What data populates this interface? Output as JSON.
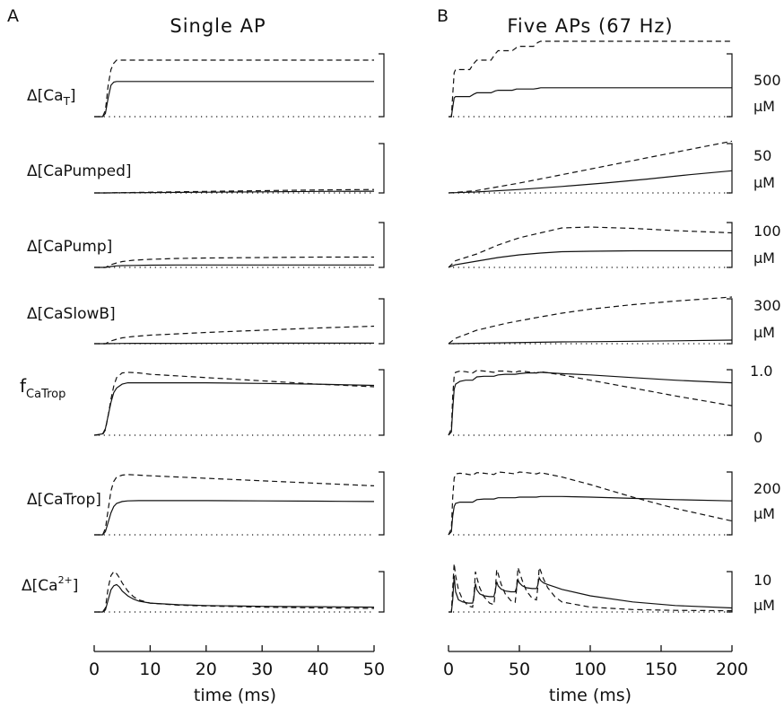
{
  "panels": [
    {
      "letter": "A",
      "title": "Single AP"
    },
    {
      "letter": "B",
      "title": "Five APs (67 Hz)"
    }
  ],
  "row_labels": [
    {
      "main": "Δ[Ca",
      "sub": "T",
      "tail": "]"
    },
    {
      "main": "Δ[CaPumped]"
    },
    {
      "main": "Δ[CaPump]"
    },
    {
      "main": "Δ[CaSlowB]"
    },
    {
      "main": "f",
      "sub": "CaTrop"
    },
    {
      "main": "Δ[CaTrop]"
    },
    {
      "main": "Δ[Ca",
      "sup": "2+",
      "tail": "]"
    }
  ],
  "scale_bars": [
    {
      "value": "500",
      "unit": "μM"
    },
    {
      "value": "50",
      "unit": "μM"
    },
    {
      "value": "100",
      "unit": "μM"
    },
    {
      "value": "300",
      "unit": "μM"
    },
    {
      "top": "1.0",
      "bottom": "0"
    },
    {
      "value": "200",
      "unit": "μM"
    },
    {
      "value": "10",
      "unit": "μM"
    }
  ],
  "colors": {
    "line": "#111111",
    "background": "#ffffff"
  },
  "chart_data": [
    {
      "type": "line",
      "panel": "A",
      "xlabel": "time (ms)",
      "xlim": [
        0,
        50
      ],
      "xticks": [
        0,
        10,
        20,
        30,
        40,
        50
      ],
      "line_styles": {
        "solid": "solid",
        "dashed": "dashed",
        "baseline": "dotted"
      },
      "note": "y values are fractions of each row's scale bar",
      "rows": [
        {
          "x": [
            0,
            1.5,
            2,
            2.5,
            3,
            3.5,
            4,
            5,
            7,
            10,
            20,
            30,
            40,
            50
          ],
          "solid": [
            0,
            0,
            0.05,
            0.3,
            0.5,
            0.55,
            0.56,
            0.56,
            0.56,
            0.56,
            0.56,
            0.56,
            0.56,
            0.56
          ],
          "dashed": [
            0,
            0,
            0.1,
            0.5,
            0.75,
            0.85,
            0.9,
            0.9,
            0.9,
            0.9,
            0.9,
            0.9,
            0.9,
            0.9
          ]
        },
        {
          "x": [
            0,
            2,
            5,
            10,
            20,
            30,
            40,
            50
          ],
          "solid": [
            0,
            0,
            0.003,
            0.008,
            0.015,
            0.022,
            0.03,
            0.035
          ],
          "dashed": [
            0,
            0,
            0.006,
            0.015,
            0.03,
            0.045,
            0.06,
            0.07
          ]
        },
        {
          "x": [
            0,
            2,
            3,
            4,
            5,
            7,
            10,
            15,
            20,
            30,
            40,
            50
          ],
          "solid": [
            0,
            0,
            0.02,
            0.035,
            0.04,
            0.045,
            0.05,
            0.055,
            0.055,
            0.055,
            0.055,
            0.055
          ],
          "dashed": [
            0,
            0,
            0.06,
            0.1,
            0.13,
            0.16,
            0.18,
            0.2,
            0.21,
            0.22,
            0.23,
            0.23
          ]
        },
        {
          "x": [
            0,
            2,
            3,
            4,
            5,
            7,
            10,
            15,
            20,
            30,
            40,
            50
          ],
          "solid": [
            0,
            0,
            0.003,
            0.005,
            0.006,
            0.007,
            0.008,
            0.009,
            0.01,
            0.011,
            0.012,
            0.013
          ],
          "dashed": [
            0,
            0,
            0.06,
            0.1,
            0.13,
            0.16,
            0.19,
            0.22,
            0.25,
            0.3,
            0.35,
            0.39
          ]
        },
        {
          "x": [
            0,
            1.5,
            2,
            2.5,
            3,
            3.5,
            4,
            5,
            6,
            8,
            10,
            20,
            30,
            40,
            50
          ],
          "solid": [
            0,
            0.02,
            0.1,
            0.3,
            0.5,
            0.65,
            0.72,
            0.78,
            0.8,
            0.8,
            0.8,
            0.8,
            0.79,
            0.78,
            0.76
          ],
          "dashed": [
            0,
            0.01,
            0.08,
            0.3,
            0.55,
            0.75,
            0.88,
            0.95,
            0.96,
            0.95,
            0.93,
            0.88,
            0.83,
            0.78,
            0.74
          ]
        },
        {
          "x": [
            0,
            1.5,
            2,
            2.5,
            3,
            3.5,
            4,
            5,
            6,
            8,
            10,
            20,
            30,
            40,
            50
          ],
          "solid": [
            0,
            0,
            0.05,
            0.2,
            0.35,
            0.45,
            0.5,
            0.53,
            0.54,
            0.545,
            0.545,
            0.545,
            0.54,
            0.535,
            0.53
          ],
          "dashed": [
            0,
            0,
            0.1,
            0.4,
            0.7,
            0.85,
            0.92,
            0.95,
            0.96,
            0.95,
            0.94,
            0.9,
            0.86,
            0.82,
            0.78
          ]
        },
        {
          "x": [
            0,
            1.5,
            2,
            2.5,
            3,
            3.5,
            4,
            4.5,
            5,
            6,
            7,
            8,
            10,
            15,
            20,
            30,
            40,
            50
          ],
          "solid": [
            0,
            0,
            0.05,
            0.3,
            0.55,
            0.65,
            0.68,
            0.62,
            0.52,
            0.4,
            0.32,
            0.27,
            0.22,
            0.18,
            0.16,
            0.14,
            0.13,
            0.12
          ],
          "dashed": [
            0,
            0,
            0.1,
            0.6,
            0.9,
            1.0,
            0.95,
            0.85,
            0.72,
            0.52,
            0.38,
            0.3,
            0.22,
            0.17,
            0.15,
            0.12,
            0.1,
            0.09
          ]
        }
      ]
    },
    {
      "type": "line",
      "panel": "B",
      "xlabel": "time (ms)",
      "xlim": [
        0,
        200
      ],
      "xticks": [
        0,
        50,
        100,
        150,
        200
      ],
      "line_styles": {
        "solid": "solid",
        "dashed": "dashed",
        "baseline": "dotted"
      },
      "note": "y values are fractions of each row's scale bar",
      "rows": [
        {
          "x": [
            0,
            2,
            3,
            4,
            5,
            15,
            18,
            20,
            30,
            33,
            35,
            45,
            48,
            50,
            60,
            63,
            65,
            100,
            200
          ],
          "solid": [
            0,
            0,
            0.15,
            0.3,
            0.32,
            0.32,
            0.36,
            0.38,
            0.38,
            0.41,
            0.42,
            0.42,
            0.44,
            0.44,
            0.44,
            0.45,
            0.46,
            0.46,
            0.46
          ],
          "dashed": [
            0,
            0,
            0.35,
            0.7,
            0.75,
            0.75,
            0.85,
            0.9,
            0.9,
            1.0,
            1.05,
            1.05,
            1.1,
            1.12,
            1.12,
            1.18,
            1.2,
            1.2,
            1.2
          ]
        },
        {
          "x": [
            0,
            5,
            20,
            50,
            80,
            110,
            140,
            170,
            200
          ],
          "solid": [
            0,
            0.005,
            0.02,
            0.07,
            0.13,
            0.2,
            0.28,
            0.37,
            0.45
          ],
          "dashed": [
            0,
            0.01,
            0.05,
            0.2,
            0.37,
            0.54,
            0.71,
            0.88,
            1.05
          ]
        },
        {
          "x": [
            0,
            5,
            20,
            35,
            50,
            65,
            80,
            100,
            130,
            160,
            200
          ],
          "solid": [
            0,
            0.06,
            0.14,
            0.22,
            0.28,
            0.32,
            0.35,
            0.36,
            0.37,
            0.37,
            0.37
          ],
          "dashed": [
            0,
            0.15,
            0.3,
            0.5,
            0.66,
            0.77,
            0.88,
            0.9,
            0.87,
            0.82,
            0.77
          ]
        },
        {
          "x": [
            0,
            5,
            20,
            40,
            60,
            80,
            100,
            130,
            160,
            200
          ],
          "solid": [
            0,
            0.003,
            0.01,
            0.02,
            0.03,
            0.04,
            0.045,
            0.055,
            0.065,
            0.08
          ],
          "dashed": [
            0,
            0.12,
            0.3,
            0.45,
            0.57,
            0.68,
            0.77,
            0.87,
            0.95,
            1.04
          ]
        },
        {
          "x": [
            0,
            2,
            3,
            4,
            5,
            8,
            12,
            17,
            20,
            25,
            32,
            35,
            40,
            47,
            50,
            55,
            62,
            65,
            80,
            100,
            130,
            160,
            200
          ],
          "solid": [
            0,
            0.05,
            0.4,
            0.7,
            0.78,
            0.82,
            0.84,
            0.84,
            0.89,
            0.9,
            0.9,
            0.92,
            0.93,
            0.93,
            0.94,
            0.95,
            0.95,
            0.96,
            0.94,
            0.92,
            0.88,
            0.84,
            0.8
          ],
          "dashed": [
            0,
            0.1,
            0.6,
            0.9,
            0.96,
            0.98,
            0.97,
            0.95,
            0.99,
            0.98,
            0.96,
            0.98,
            0.98,
            0.96,
            0.98,
            0.97,
            0.95,
            0.97,
            0.92,
            0.84,
            0.72,
            0.6,
            0.45
          ]
        },
        {
          "x": [
            0,
            2,
            3,
            4,
            5,
            8,
            12,
            17,
            20,
            25,
            32,
            35,
            40,
            47,
            50,
            55,
            62,
            65,
            80,
            100,
            130,
            160,
            200
          ],
          "solid": [
            0,
            0.05,
            0.3,
            0.45,
            0.5,
            0.52,
            0.52,
            0.52,
            0.56,
            0.57,
            0.57,
            0.59,
            0.59,
            0.59,
            0.6,
            0.6,
            0.6,
            0.61,
            0.61,
            0.6,
            0.58,
            0.56,
            0.54
          ],
          "dashed": [
            0,
            0.1,
            0.6,
            0.9,
            0.97,
            0.98,
            0.97,
            0.95,
            0.99,
            0.98,
            0.96,
            1.0,
            0.99,
            0.97,
            1.0,
            0.99,
            0.97,
            0.99,
            0.92,
            0.8,
            0.6,
            0.42,
            0.22
          ]
        },
        {
          "x": [
            0,
            2,
            3,
            4,
            5,
            7,
            10,
            14,
            17,
            18,
            19,
            20,
            22,
            25,
            29,
            32,
            33,
            34,
            35,
            37,
            40,
            44,
            47,
            48,
            49,
            50,
            52,
            55,
            59,
            62,
            63,
            64,
            65,
            67,
            70,
            75,
            80,
            100,
            130,
            160,
            200
          ],
          "solid": [
            0,
            0,
            0.3,
            0.9,
            0.5,
            0.3,
            0.25,
            0.22,
            0.22,
            0.4,
            0.7,
            0.55,
            0.45,
            0.4,
            0.38,
            0.38,
            0.52,
            0.75,
            0.65,
            0.57,
            0.52,
            0.5,
            0.5,
            0.6,
            0.8,
            0.72,
            0.65,
            0.6,
            0.58,
            0.58,
            0.66,
            0.85,
            0.78,
            0.72,
            0.68,
            0.62,
            0.56,
            0.4,
            0.25,
            0.16,
            0.1
          ],
          "dashed": [
            0,
            0,
            0.6,
            1.2,
            0.9,
            0.55,
            0.3,
            0.15,
            0.12,
            0.4,
            1.0,
            0.85,
            0.6,
            0.38,
            0.22,
            0.18,
            0.5,
            1.05,
            0.95,
            0.7,
            0.45,
            0.28,
            0.24,
            0.55,
            1.1,
            1.0,
            0.78,
            0.52,
            0.34,
            0.3,
            0.6,
            1.1,
            1.02,
            0.82,
            0.6,
            0.38,
            0.25,
            0.12,
            0.06,
            0.04,
            0.03
          ]
        }
      ]
    }
  ]
}
